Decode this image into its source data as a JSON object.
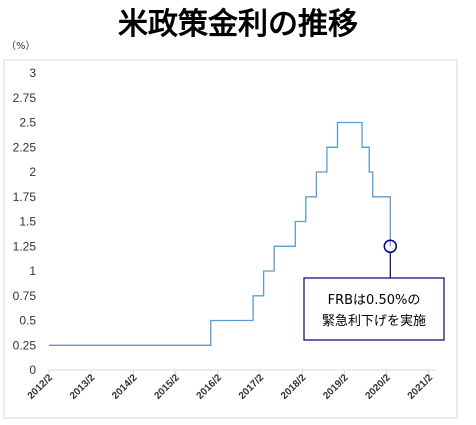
{
  "chart_data": {
    "type": "line",
    "title": "米政策金利の推移",
    "unit_label": "（%）",
    "ylim": [
      0,
      3
    ],
    "yticks": [
      "0",
      "0.25",
      "0.5",
      "0.75",
      "1",
      "1.25",
      "1.5",
      "1.75",
      "2",
      "2.25",
      "2.5",
      "2.75",
      "3"
    ],
    "xlim": [
      "2012-02",
      "2021-04"
    ],
    "xticks": [
      "2012/2",
      "2013/2",
      "2014/2",
      "2015/2",
      "2016/2",
      "2017/2",
      "2018/2",
      "2019/2",
      "2020/2",
      "2021/2"
    ],
    "grid": false,
    "line_color": "#5B9BD5",
    "series": [
      {
        "points": [
          [
            "2012-02",
            0.25
          ],
          [
            "2015-12",
            0.25
          ],
          [
            "2015-12",
            0.5
          ],
          [
            "2016-12",
            0.5
          ],
          [
            "2016-12",
            0.75
          ],
          [
            "2017-03",
            0.75
          ],
          [
            "2017-03",
            1.0
          ],
          [
            "2017-06",
            1.0
          ],
          [
            "2017-06",
            1.25
          ],
          [
            "2017-12",
            1.25
          ],
          [
            "2017-12",
            1.5
          ],
          [
            "2018-03",
            1.5
          ],
          [
            "2018-03",
            1.75
          ],
          [
            "2018-06",
            1.75
          ],
          [
            "2018-06",
            2.0
          ],
          [
            "2018-09",
            2.0
          ],
          [
            "2018-09",
            2.25
          ],
          [
            "2018-12",
            2.25
          ],
          [
            "2018-12",
            2.5
          ],
          [
            "2019-07",
            2.5
          ],
          [
            "2019-07",
            2.25
          ],
          [
            "2019-09",
            2.25
          ],
          [
            "2019-09",
            2.0
          ],
          [
            "2019-10",
            2.0
          ],
          [
            "2019-10",
            1.75
          ],
          [
            "2020-03",
            1.75
          ],
          [
            "2020-03",
            1.25
          ]
        ]
      }
    ],
    "annotation": {
      "point": [
        "2020-03",
        1.25
      ],
      "lines": [
        "FRBは0.50%の",
        "緊急利下げを実施"
      ],
      "circle_color": "#00008B",
      "box_border": "#000080"
    }
  }
}
